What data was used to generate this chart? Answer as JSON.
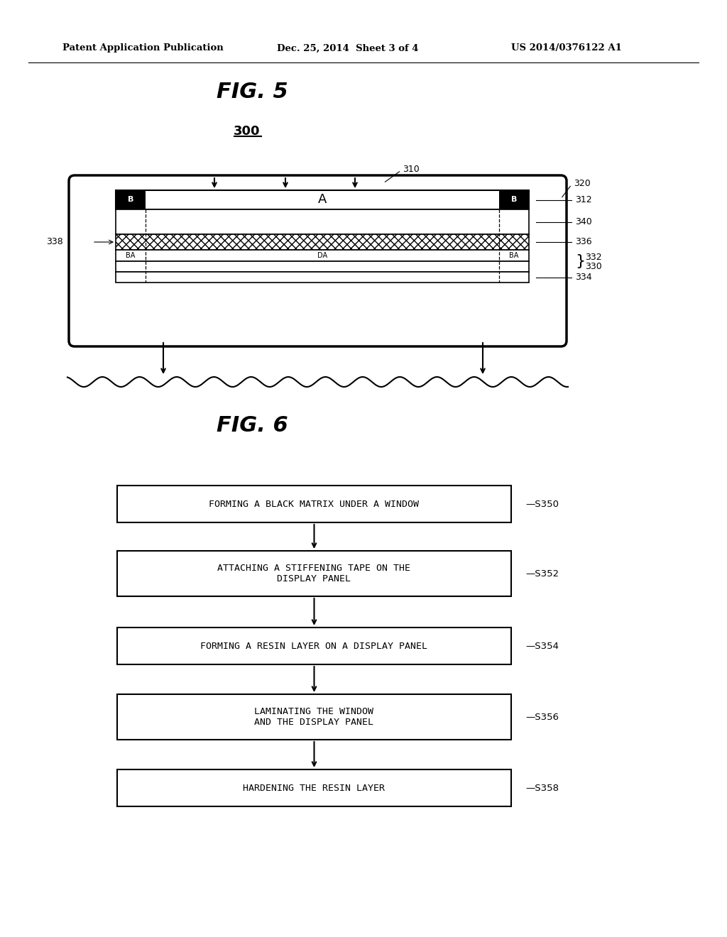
{
  "bg_color": "#ffffff",
  "header_left": "Patent Application Publication",
  "header_mid": "Dec. 25, 2014  Sheet 3 of 4",
  "header_right": "US 2014/0376122 A1",
  "fig5_title": "FIG. 5",
  "fig5_label": "300",
  "fig6_title": "FIG. 6",
  "flow_steps": [
    {
      "label": "FORMING A BLACK MATRIX UNDER A WINDOW",
      "step": "S350"
    },
    {
      "label": "ATTACHING A STIFFENING TAPE ON THE\nDISPLAY PANEL",
      "step": "S352"
    },
    {
      "label": "FORMING A RESIN LAYER ON A DISPLAY PANEL",
      "step": "S354"
    },
    {
      "label": "LAMINATING THE WINDOW\nAND THE DISPLAY PANEL",
      "step": "S356"
    },
    {
      "label": "HARDENING THE RESIN LAYER",
      "step": "S358"
    }
  ]
}
